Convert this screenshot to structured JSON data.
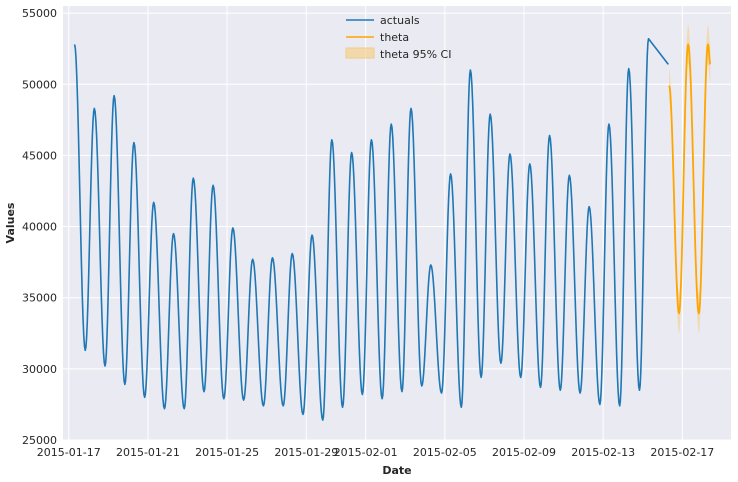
{
  "chart_data": {
    "type": "line",
    "title": "",
    "xlabel": "Date",
    "ylabel": "Values",
    "xlim": [
      "2015-01-16T17:00",
      "2015-02-19T11:00"
    ],
    "ylim": [
      25000,
      55500
    ],
    "x_ticks": [
      "2015-01-17",
      "2015-01-21",
      "2015-01-25",
      "2015-01-29",
      "2015-02-01",
      "2015-02-05",
      "2015-02-09",
      "2015-02-13",
      "2015-02-17"
    ],
    "y_ticks": [
      25000,
      30000,
      35000,
      40000,
      45000,
      50000,
      55000
    ],
    "y_tick_labels": [
      "25000",
      "30000",
      "35000",
      "40000",
      "45000",
      "50000",
      "55000"
    ],
    "grid": true,
    "legend_position": "top-center",
    "colors": {
      "plot_background": "#eaeaf2",
      "grid": "#ffffff",
      "actuals": "#1f77b4",
      "theta": "#ffa500",
      "ci_fill": "#f5cc7f"
    },
    "series": [
      {
        "name": "actuals",
        "daily_extremes": [
          {
            "date": "2015-01-17",
            "max": 52800,
            "min": 31300
          },
          {
            "date": "2015-01-18",
            "max": 48300,
            "min": 30200
          },
          {
            "date": "2015-01-19",
            "max": 49200,
            "min": 28900
          },
          {
            "date": "2015-01-20",
            "max": 45900,
            "min": 28000
          },
          {
            "date": "2015-01-21",
            "max": 41700,
            "min": 27200
          },
          {
            "date": "2015-01-22",
            "max": 39500,
            "min": 27200
          },
          {
            "date": "2015-01-23",
            "max": 43400,
            "min": 28400
          },
          {
            "date": "2015-01-24",
            "max": 42900,
            "min": 27900
          },
          {
            "date": "2015-01-25",
            "max": 39900,
            "min": 27800
          },
          {
            "date": "2015-01-26",
            "max": 37700,
            "min": 27400
          },
          {
            "date": "2015-01-27",
            "max": 37800,
            "min": 27400
          },
          {
            "date": "2015-01-28",
            "max": 38100,
            "min": 26800
          },
          {
            "date": "2015-01-29",
            "max": 39400,
            "min": 26400
          },
          {
            "date": "2015-01-30",
            "max": 46100,
            "min": 27300
          },
          {
            "date": "2015-01-31",
            "max": 45200,
            "min": 28200
          },
          {
            "date": "2015-02-01",
            "max": 46100,
            "min": 27900
          },
          {
            "date": "2015-02-02",
            "max": 47200,
            "min": 28400
          },
          {
            "date": "2015-02-03",
            "max": 48300,
            "min": 28800
          },
          {
            "date": "2015-02-04",
            "max": 37300,
            "min": 28300
          },
          {
            "date": "2015-02-05",
            "max": 43700,
            "min": 27300
          },
          {
            "date": "2015-02-06",
            "max": 51000,
            "min": 29400
          },
          {
            "date": "2015-02-07",
            "max": 47900,
            "min": 30400
          },
          {
            "date": "2015-02-08",
            "max": 45100,
            "min": 29400
          },
          {
            "date": "2015-02-09",
            "max": 44400,
            "min": 28700
          },
          {
            "date": "2015-02-10",
            "max": 46400,
            "min": 28500
          },
          {
            "date": "2015-02-11",
            "max": 43600,
            "min": 28300
          },
          {
            "date": "2015-02-12",
            "max": 41400,
            "min": 27500
          },
          {
            "date": "2015-02-13",
            "max": 47200,
            "min": 27400
          },
          {
            "date": "2015-02-14",
            "max": 51100,
            "min": 28500
          },
          {
            "date": "2015-02-15",
            "max": 53200,
            "min": 29800
          }
        ],
        "last_value": {
          "date": "2015-02-16T07:00",
          "value": 51400
        }
      },
      {
        "name": "theta",
        "points": [
          {
            "x": "2015-02-16T08:00",
            "y": 49900
          },
          {
            "x": "2015-02-16T20:00",
            "y": 33900
          },
          {
            "x": "2015-02-17T07:00",
            "y": 52800
          },
          {
            "x": "2015-02-17T20:00",
            "y": 33900
          },
          {
            "x": "2015-02-18T07:00",
            "y": 52800
          },
          {
            "x": "2015-02-18T10:00",
            "y": 51400
          }
        ]
      },
      {
        "name": "theta 95% CI",
        "ci_halfwidth": 1400
      }
    ]
  }
}
